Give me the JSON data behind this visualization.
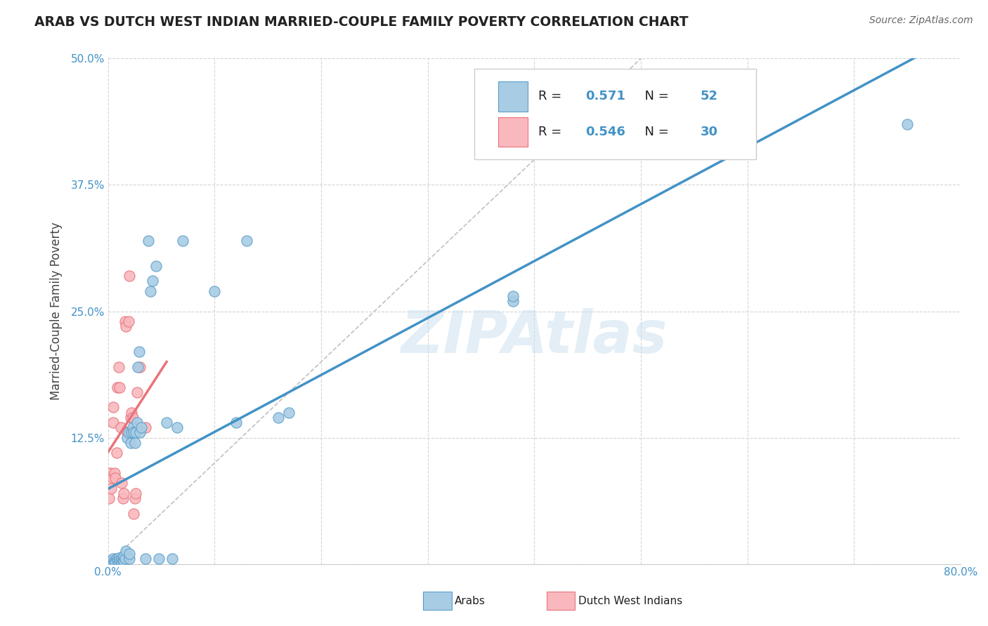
{
  "title": "ARAB VS DUTCH WEST INDIAN MARRIED-COUPLE FAMILY POVERTY CORRELATION CHART",
  "source": "Source: ZipAtlas.com",
  "ylabel": "Married-Couple Family Poverty",
  "xlim": [
    0.0,
    0.8
  ],
  "ylim": [
    0.0,
    0.5
  ],
  "xticks": [
    0.0,
    0.1,
    0.2,
    0.3,
    0.4,
    0.5,
    0.6,
    0.7,
    0.8
  ],
  "xticklabels": [
    "0.0%",
    "",
    "",
    "",
    "",
    "",
    "",
    "",
    "80.0%"
  ],
  "yticks": [
    0.0,
    0.125,
    0.25,
    0.375,
    0.5
  ],
  "yticklabels": [
    "",
    "12.5%",
    "25.0%",
    "37.5%",
    "50.0%"
  ],
  "arab_color": "#a8cce4",
  "arab_edge_color": "#5b9ec9",
  "dutch_color": "#f8b8be",
  "dutch_edge_color": "#e8737a",
  "arab_R": 0.571,
  "arab_N": 52,
  "dutch_R": 0.546,
  "dutch_N": 30,
  "watermark": "ZIPAtlas",
  "background_color": "#ffffff",
  "grid_color": "#d0d0d0",
  "diagonal_color": "#c0c0c0",
  "arab_line_color": "#4292c6",
  "dutch_line_color": "#e8737a",
  "arab_scatter": [
    [
      0.002,
      0.003
    ],
    [
      0.003,
      0.002
    ],
    [
      0.004,
      0.004
    ],
    [
      0.005,
      0.001
    ],
    [
      0.005,
      0.005
    ],
    [
      0.006,
      0.003
    ],
    [
      0.007,
      0.002
    ],
    [
      0.008,
      0.005
    ],
    [
      0.009,
      0.003
    ],
    [
      0.01,
      0.002
    ],
    [
      0.01,
      0.006
    ],
    [
      0.011,
      0.004
    ],
    [
      0.012,
      0.003
    ],
    [
      0.013,
      0.005
    ],
    [
      0.014,
      0.004
    ],
    [
      0.015,
      0.003
    ],
    [
      0.015,
      0.008
    ],
    [
      0.016,
      0.005
    ],
    [
      0.017,
      0.013
    ],
    [
      0.018,
      0.125
    ],
    [
      0.019,
      0.13
    ],
    [
      0.02,
      0.005
    ],
    [
      0.02,
      0.01
    ],
    [
      0.021,
      0.12
    ],
    [
      0.022,
      0.13
    ],
    [
      0.023,
      0.135
    ],
    [
      0.024,
      0.13
    ],
    [
      0.025,
      0.12
    ],
    [
      0.026,
      0.13
    ],
    [
      0.027,
      0.14
    ],
    [
      0.028,
      0.195
    ],
    [
      0.029,
      0.21
    ],
    [
      0.03,
      0.13
    ],
    [
      0.031,
      0.135
    ],
    [
      0.035,
      0.005
    ],
    [
      0.038,
      0.32
    ],
    [
      0.04,
      0.27
    ],
    [
      0.042,
      0.28
    ],
    [
      0.045,
      0.295
    ],
    [
      0.048,
      0.005
    ],
    [
      0.055,
      0.14
    ],
    [
      0.06,
      0.005
    ],
    [
      0.065,
      0.135
    ],
    [
      0.07,
      0.32
    ],
    [
      0.1,
      0.27
    ],
    [
      0.12,
      0.14
    ],
    [
      0.13,
      0.32
    ],
    [
      0.16,
      0.145
    ],
    [
      0.17,
      0.15
    ],
    [
      0.38,
      0.26
    ],
    [
      0.38,
      0.265
    ],
    [
      0.75,
      0.435
    ]
  ],
  "dutch_scatter": [
    [
      0.001,
      0.065
    ],
    [
      0.002,
      0.09
    ],
    [
      0.003,
      0.075
    ],
    [
      0.004,
      0.085
    ],
    [
      0.005,
      0.14
    ],
    [
      0.005,
      0.155
    ],
    [
      0.006,
      0.09
    ],
    [
      0.007,
      0.085
    ],
    [
      0.008,
      0.11
    ],
    [
      0.009,
      0.175
    ],
    [
      0.01,
      0.195
    ],
    [
      0.011,
      0.175
    ],
    [
      0.012,
      0.135
    ],
    [
      0.013,
      0.08
    ],
    [
      0.014,
      0.065
    ],
    [
      0.015,
      0.07
    ],
    [
      0.016,
      0.24
    ],
    [
      0.017,
      0.235
    ],
    [
      0.018,
      0.13
    ],
    [
      0.019,
      0.24
    ],
    [
      0.02,
      0.285
    ],
    [
      0.021,
      0.145
    ],
    [
      0.022,
      0.15
    ],
    [
      0.023,
      0.145
    ],
    [
      0.024,
      0.05
    ],
    [
      0.025,
      0.065
    ],
    [
      0.026,
      0.07
    ],
    [
      0.027,
      0.17
    ],
    [
      0.03,
      0.195
    ],
    [
      0.035,
      0.135
    ]
  ]
}
